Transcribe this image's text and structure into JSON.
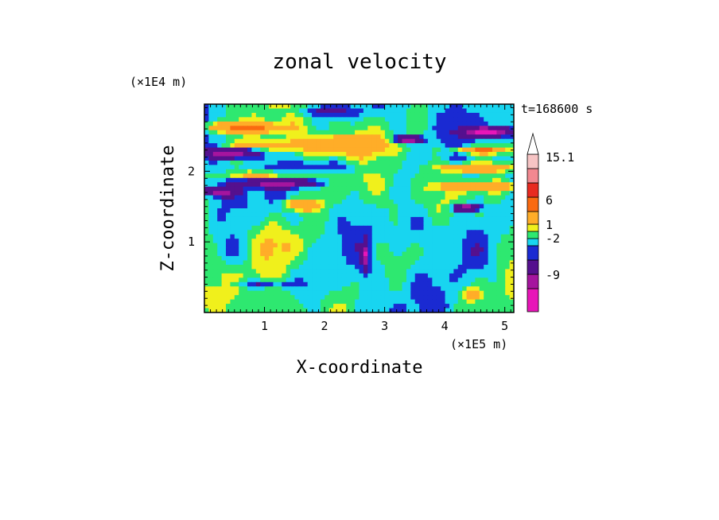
{
  "chart_data": {
    "type": "heatmap",
    "title": "zonal velocity",
    "xlabel": "X-coordinate",
    "ylabel": "Z-coordinate",
    "x_unit": "(×1E5 m)",
    "y_unit": "(×1E4 m)",
    "time_label": "t=168600 s",
    "xlim": [
      0,
      5.15
    ],
    "ylim": [
      0,
      2.95
    ],
    "x_ticks": [
      1,
      2,
      3,
      4,
      5
    ],
    "y_ticks": [
      1,
      2
    ],
    "x_tick_labels": [
      "1",
      "2",
      "3",
      "4",
      "5"
    ],
    "y_tick_labels": [
      "1",
      "2"
    ],
    "colorbar": {
      "levels": [
        -15,
        -9,
        -6,
        -2,
        -1,
        0,
        1,
        2,
        6,
        9,
        15.1
      ],
      "colors": [
        "#e815b8",
        "#a5159e",
        "#55108e",
        "#1a2ad2",
        "#18d5f0",
        "#2ee870",
        "#f0f01c",
        "#ffad28",
        "#fa6a10",
        "#e82a20",
        "#f28890",
        "#f6c4c4"
      ],
      "labels": [
        "15.1",
        "6",
        "1",
        "-2",
        "-9"
      ],
      "label_values": [
        15.1,
        6,
        1,
        -2,
        -9
      ],
      "extend_max": true
    },
    "grid": false,
    "description_note": ""
  }
}
